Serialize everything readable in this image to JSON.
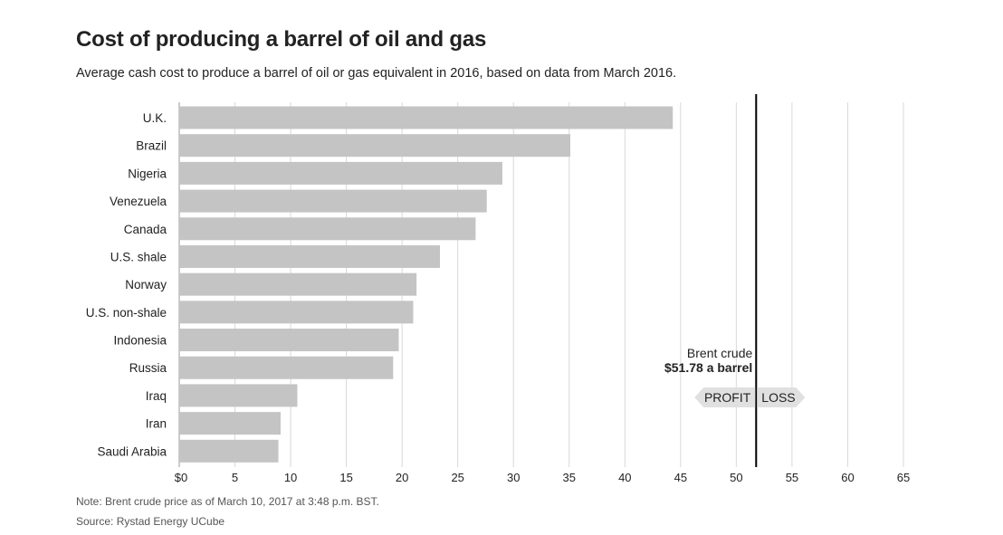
{
  "header": {
    "title": "Cost of producing a barrel of oil and gas",
    "subtitle": "Average cash cost to produce a barrel of oil or gas equivalent in 2016, based on data from March 2016."
  },
  "footer": {
    "note": "Note: Brent crude price as of March 10, 2017 at 3:48 p.m. BST.",
    "source": "Source: Rystad Energy UCube"
  },
  "chart_data": {
    "type": "bar",
    "orientation": "horizontal",
    "categories": [
      "U.K.",
      "Brazil",
      "Nigeria",
      "Venezuela",
      "Canada",
      "U.S. shale",
      "Norway",
      "U.S. non-shale",
      "Indonesia",
      "Russia",
      "Iraq",
      "Iran",
      "Saudi Arabia"
    ],
    "values": [
      44.3,
      35.1,
      29.0,
      27.6,
      26.6,
      23.4,
      21.3,
      21.0,
      19.7,
      19.2,
      10.6,
      9.1,
      8.9
    ],
    "xlim": [
      0,
      65
    ],
    "xticks": [
      "$0",
      "5",
      "10",
      "15",
      "20",
      "25",
      "30",
      "35",
      "40",
      "45",
      "50",
      "55",
      "60",
      "65"
    ],
    "grid": true,
    "bar_color": "#c4c4c4",
    "reference_line": {
      "value": 51.78,
      "label_line1": "Brent crude",
      "label_line2": "$51.78 a barrel",
      "left_label": "PROFIT",
      "right_label": "LOSS",
      "color": "#000000",
      "marker_color": "#e0e0e0"
    }
  }
}
